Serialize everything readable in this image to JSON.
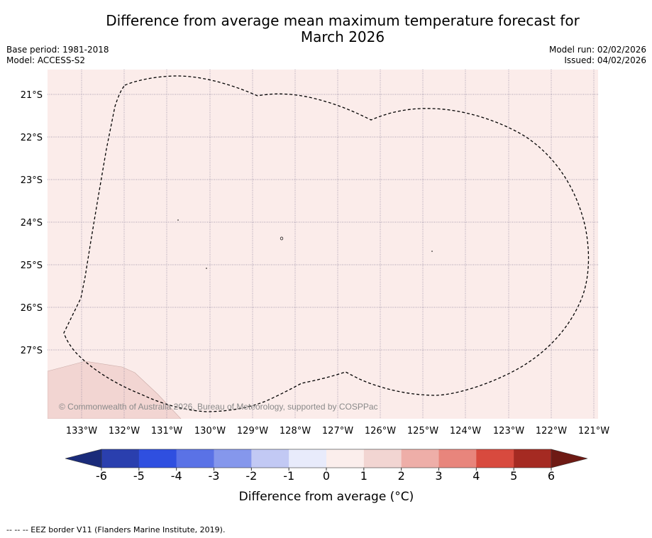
{
  "title_line1": "Difference from average mean maximum temperature forecast for",
  "title_line2": "March 2026",
  "base_period": "Base period: 1981-2018",
  "model": "Model: ACCESS-S2",
  "model_run": "Model run: 02/02/2026",
  "issued": "Issued: 04/02/2026",
  "watermark": "© Commonwealth of Australia 2026, Bureau of Meteorology, supported by COSPPac",
  "colorbar_label": "Difference from average (°C)",
  "eez_credit": "--  --  -- EEZ border V11 (Flanders Marine Institute, 2019).",
  "lat_labels": [
    "21°S",
    "22°S",
    "23°S",
    "24°S",
    "25°S",
    "26°S",
    "27°S"
  ],
  "lon_labels": [
    "133°W",
    "132°W",
    "131°W",
    "130°W",
    "129°W",
    "128°W",
    "127°W",
    "126°W",
    "125°W",
    "124°W",
    "123°W",
    "122°W",
    "121°W"
  ],
  "colorbar": {
    "ticks": [
      "-6",
      "-5",
      "-4",
      "-3",
      "-2",
      "-1",
      "0",
      "1",
      "2",
      "3",
      "4",
      "5",
      "6"
    ],
    "colors": [
      "#2a3fae",
      "#2f4fe0",
      "#5a72e6",
      "#8597ec",
      "#c2c9f4",
      "#e8ebfb",
      "#fbeeec",
      "#f2d5d2",
      "#eeaea8",
      "#e8857c",
      "#d84a3e",
      "#a52a22"
    ],
    "under_color": "#1a2b7a",
    "over_color": "#6e1a14"
  },
  "map_colors": {
    "ocean_fill": "#fbecea",
    "land_fill": "#f2d5d2"
  }
}
